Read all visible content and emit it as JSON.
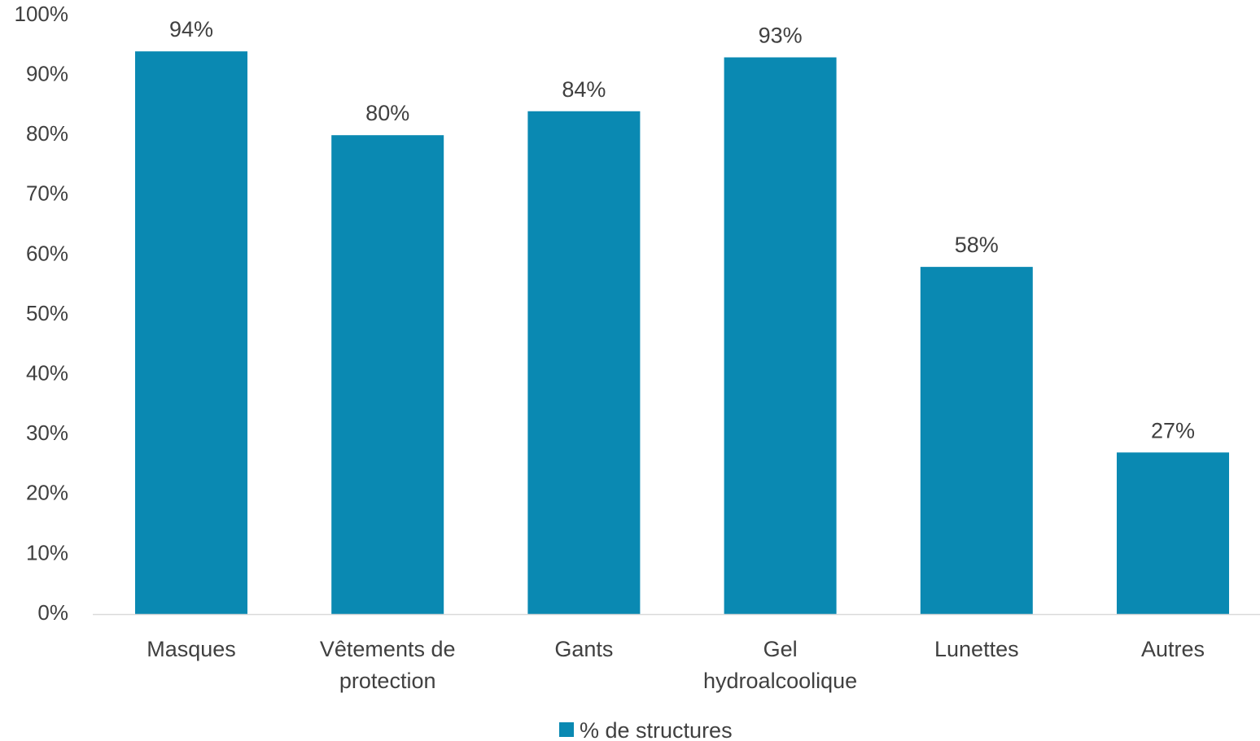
{
  "chart_data": {
    "type": "bar",
    "categories": [
      [
        "Masques"
      ],
      [
        "Vêtements de",
        "protection"
      ],
      [
        "Gants"
      ],
      [
        "Gel",
        "hydroalcoolique"
      ],
      [
        "Lunettes"
      ],
      [
        "Autres"
      ]
    ],
    "series": [
      {
        "name": "% de structures",
        "values": [
          94,
          80,
          84,
          93,
          58,
          27
        ],
        "value_labels": [
          "94%",
          "80%",
          "84%",
          "93%",
          "58%",
          "27%"
        ],
        "color": "#0a89b2"
      }
    ],
    "ylim": [
      0,
      100
    ],
    "y_ticks": [
      0,
      10,
      20,
      30,
      40,
      50,
      60,
      70,
      80,
      90,
      100
    ],
    "y_tick_labels": [
      "0%",
      "10%",
      "20%",
      "30%",
      "40%",
      "50%",
      "60%",
      "70%",
      "80%",
      "90%",
      "100%"
    ],
    "grid": false,
    "legend_position": "bottom",
    "axis_color": "#d9d9d9",
    "text_color": "#404040"
  }
}
